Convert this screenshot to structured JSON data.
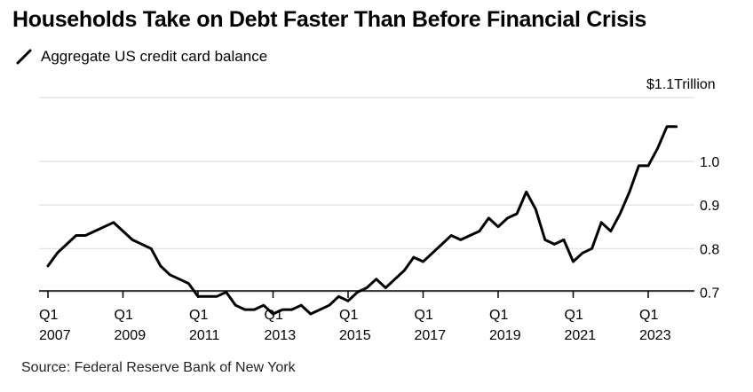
{
  "title": "Households Take on Debt Faster Than Before Financial Crisis",
  "legend_label": "Aggregate US credit card balance",
  "source": "Source: Federal Reserve Bank of New York",
  "colors": {
    "line": "#000000",
    "grid": "#d9d9d9",
    "axis": "#000000"
  },
  "chart_data": {
    "type": "line",
    "title": "Households Take on Debt Faster Than Before Financial Crisis",
    "unit_annotation": "$1.1 Trillion",
    "ylim": [
      0.65,
      1.1
    ],
    "y_ticks": [
      {
        "value": 0.7,
        "label": "0.7"
      },
      {
        "value": 0.8,
        "label": "0.8"
      },
      {
        "value": 0.9,
        "label": "0.9"
      },
      {
        "value": 1.0,
        "label": "1.0"
      }
    ],
    "x_ticks": [
      {
        "value": 2007.0,
        "q": "Q1",
        "year": "2007"
      },
      {
        "value": 2009.0,
        "q": "Q1",
        "year": "2009"
      },
      {
        "value": 2011.0,
        "q": "Q1",
        "year": "2011"
      },
      {
        "value": 2013.0,
        "q": "Q1",
        "year": "2013"
      },
      {
        "value": 2015.0,
        "q": "Q1",
        "year": "2015"
      },
      {
        "value": 2017.0,
        "q": "Q1",
        "year": "2017"
      },
      {
        "value": 2019.0,
        "q": "Q1",
        "year": "2019"
      },
      {
        "value": 2021.0,
        "q": "Q1",
        "year": "2021"
      },
      {
        "value": 2023.0,
        "q": "Q1",
        "year": "2023"
      }
    ],
    "xlim": [
      2007.0,
      2024.5
    ],
    "grid": true,
    "series": [
      {
        "name": "Aggregate US credit card balance",
        "x": [
          2007.0,
          2007.25,
          2007.5,
          2007.75,
          2008.0,
          2008.25,
          2008.5,
          2008.75,
          2009.0,
          2009.25,
          2009.5,
          2009.75,
          2010.0,
          2010.25,
          2010.5,
          2010.75,
          2011.0,
          2011.25,
          2011.5,
          2011.75,
          2012.0,
          2012.25,
          2012.5,
          2012.75,
          2013.0,
          2013.25,
          2013.5,
          2013.75,
          2014.0,
          2014.25,
          2014.5,
          2014.75,
          2015.0,
          2015.25,
          2015.5,
          2015.75,
          2016.0,
          2016.25,
          2016.5,
          2016.75,
          2017.0,
          2017.25,
          2017.5,
          2017.75,
          2018.0,
          2018.25,
          2018.5,
          2018.75,
          2019.0,
          2019.25,
          2019.5,
          2019.75,
          2020.0,
          2020.25,
          2020.5,
          2020.75,
          2021.0,
          2021.25,
          2021.5,
          2021.75,
          2022.0,
          2022.25,
          2022.5,
          2022.75,
          2023.0,
          2023.25,
          2023.5,
          2023.75
        ],
        "y": [
          0.76,
          0.79,
          0.81,
          0.83,
          0.83,
          0.84,
          0.85,
          0.86,
          0.84,
          0.82,
          0.81,
          0.8,
          0.76,
          0.74,
          0.73,
          0.72,
          0.69,
          0.69,
          0.69,
          0.7,
          0.67,
          0.66,
          0.66,
          0.67,
          0.65,
          0.66,
          0.66,
          0.67,
          0.65,
          0.66,
          0.67,
          0.69,
          0.68,
          0.7,
          0.71,
          0.73,
          0.71,
          0.73,
          0.75,
          0.78,
          0.77,
          0.79,
          0.81,
          0.83,
          0.82,
          0.83,
          0.84,
          0.87,
          0.85,
          0.87,
          0.88,
          0.93,
          0.89,
          0.82,
          0.81,
          0.82,
          0.77,
          0.79,
          0.8,
          0.86,
          0.84,
          0.88,
          0.93,
          0.99,
          0.99,
          1.03,
          1.08,
          1.08
        ]
      }
    ]
  }
}
